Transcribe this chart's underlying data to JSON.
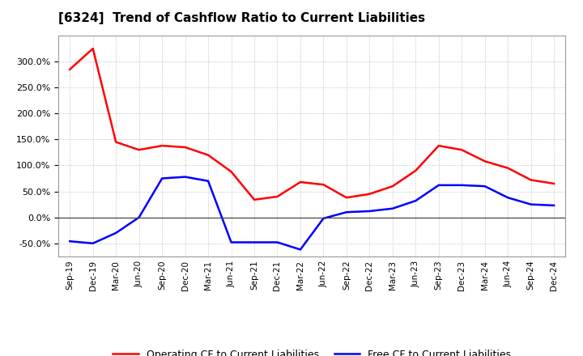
{
  "title": "[6324]  Trend of Cashflow Ratio to Current Liabilities",
  "x_labels": [
    "Sep-19",
    "Dec-19",
    "Mar-20",
    "Jun-20",
    "Sep-20",
    "Dec-20",
    "Mar-21",
    "Jun-21",
    "Sep-21",
    "Dec-21",
    "Mar-22",
    "Jun-22",
    "Sep-22",
    "Dec-22",
    "Mar-23",
    "Jun-23",
    "Sep-23",
    "Dec-23",
    "Mar-24",
    "Jun-24",
    "Sep-24",
    "Dec-24"
  ],
  "operating_cf": [
    2.85,
    3.25,
    1.45,
    1.3,
    1.38,
    1.35,
    1.2,
    0.88,
    0.34,
    0.4,
    0.68,
    0.63,
    0.38,
    0.45,
    0.6,
    0.9,
    1.38,
    1.3,
    1.08,
    0.95,
    0.72,
    0.65
  ],
  "free_cf": [
    -0.46,
    -0.5,
    -0.3,
    0.0,
    0.75,
    0.78,
    0.7,
    -0.48,
    -0.48,
    -0.48,
    -0.62,
    -0.02,
    0.1,
    0.12,
    0.17,
    0.32,
    0.62,
    0.62,
    0.6,
    0.38,
    0.25,
    0.23
  ],
  "operating_color": "#ff0000",
  "free_color": "#0000ff",
  "ylim_min": -0.75,
  "ylim_max": 3.5,
  "yticks": [
    -0.5,
    0.0,
    0.5,
    1.0,
    1.5,
    2.0,
    2.5,
    3.0
  ],
  "background_color": "#ffffff",
  "grid_color": "#aaaaaa",
  "legend_op": "Operating CF to Current Liabilities",
  "legend_free": "Free CF to Current Liabilities"
}
